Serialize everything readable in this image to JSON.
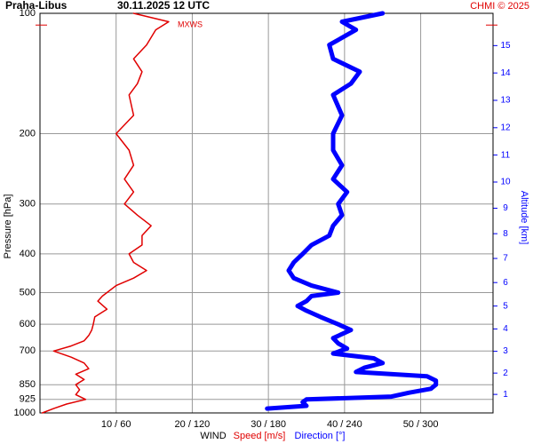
{
  "chart_data": {
    "type": "profile",
    "title": "Praha-Libus",
    "subtitle": "30.11.2025 12 UTC",
    "credit": "CHMI © 2025",
    "x_label": "WIND",
    "x_label_speed": "Speed [m/s]",
    "x_label_direction": "Direction [°]",
    "y_label": "Pressure [hPa]",
    "y2_label": "Altitude [km]",
    "log_y": true,
    "grid": true,
    "ylim": [
      1000,
      100
    ],
    "yticks": [
      100,
      200,
      300,
      400,
      500,
      600,
      700,
      850,
      925,
      1000
    ],
    "xlim": [
      0,
      59.5
    ],
    "xticks": [
      {
        "value": 10,
        "label": "10 / 60"
      },
      {
        "value": 20,
        "label": "20 / 120"
      },
      {
        "value": 30,
        "label": "30 / 180"
      },
      {
        "value": 40,
        "label": "40 / 240"
      },
      {
        "value": 50,
        "label": "50 / 300"
      }
    ],
    "x2lim": [
      0,
      357
    ],
    "y2ticks": [
      1,
      2,
      3,
      4,
      5,
      6,
      7,
      8,
      9,
      10,
      11,
      12,
      13,
      14,
      15
    ],
    "max_wind": {
      "label": "MXWS",
      "pressure": 107
    },
    "series": [
      {
        "name": "Speed",
        "color": "#e00000",
        "width": 1.5,
        "pressure": [
          1000,
          975,
          950,
          925,
          900,
          875,
          850,
          825,
          800,
          775,
          750,
          725,
          700,
          680,
          660,
          640,
          620,
          600,
          575,
          550,
          525,
          510,
          500,
          480,
          460,
          440,
          420,
          400,
          380,
          360,
          340,
          320,
          300,
          280,
          260,
          240,
          220,
          200,
          180,
          160,
          150,
          140,
          130,
          120,
          110,
          105,
          100
        ],
        "values": [
          0.3,
          1.8,
          3.5,
          6,
          4.7,
          5.2,
          4.7,
          5.8,
          4.7,
          6.4,
          5.8,
          4.1,
          1.8,
          4.1,
          5.8,
          6.4,
          6.8,
          7,
          7.2,
          8.8,
          7.6,
          8.2,
          8.8,
          10,
          12.3,
          14,
          12.3,
          11.7,
          13.4,
          13.4,
          14.6,
          12.8,
          11.1,
          12.3,
          11.1,
          12.3,
          11.7,
          10,
          12.3,
          11.7,
          12.8,
          13.4,
          12.3,
          14,
          15.2,
          16.9,
          12.3
        ]
      },
      {
        "name": "Direction",
        "color": "#0000ff",
        "width": 5,
        "axis": "x2",
        "pressure": [
          975,
          960,
          940,
          925,
          910,
          890,
          870,
          850,
          830,
          810,
          790,
          770,
          750,
          730,
          710,
          690,
          670,
          650,
          620,
          600,
          575,
          555,
          540,
          525,
          510,
          500,
          480,
          460,
          440,
          420,
          400,
          380,
          360,
          340,
          320,
          300,
          280,
          260,
          240,
          220,
          200,
          180,
          160,
          150,
          140,
          130,
          120,
          110,
          105,
          100
        ],
        "values": [
          179,
          210,
          207,
          210,
          277,
          291,
          308,
          312,
          312,
          305,
          249,
          256,
          270,
          263,
          231,
          242,
          235,
          231,
          245,
          235,
          221,
          210,
          203,
          210,
          214,
          235,
          214,
          200,
          196,
          200,
          207,
          214,
          228,
          231,
          238,
          235,
          242,
          231,
          238,
          231,
          231,
          238,
          231,
          245,
          252,
          231,
          228,
          249,
          238,
          270
        ]
      }
    ]
  }
}
